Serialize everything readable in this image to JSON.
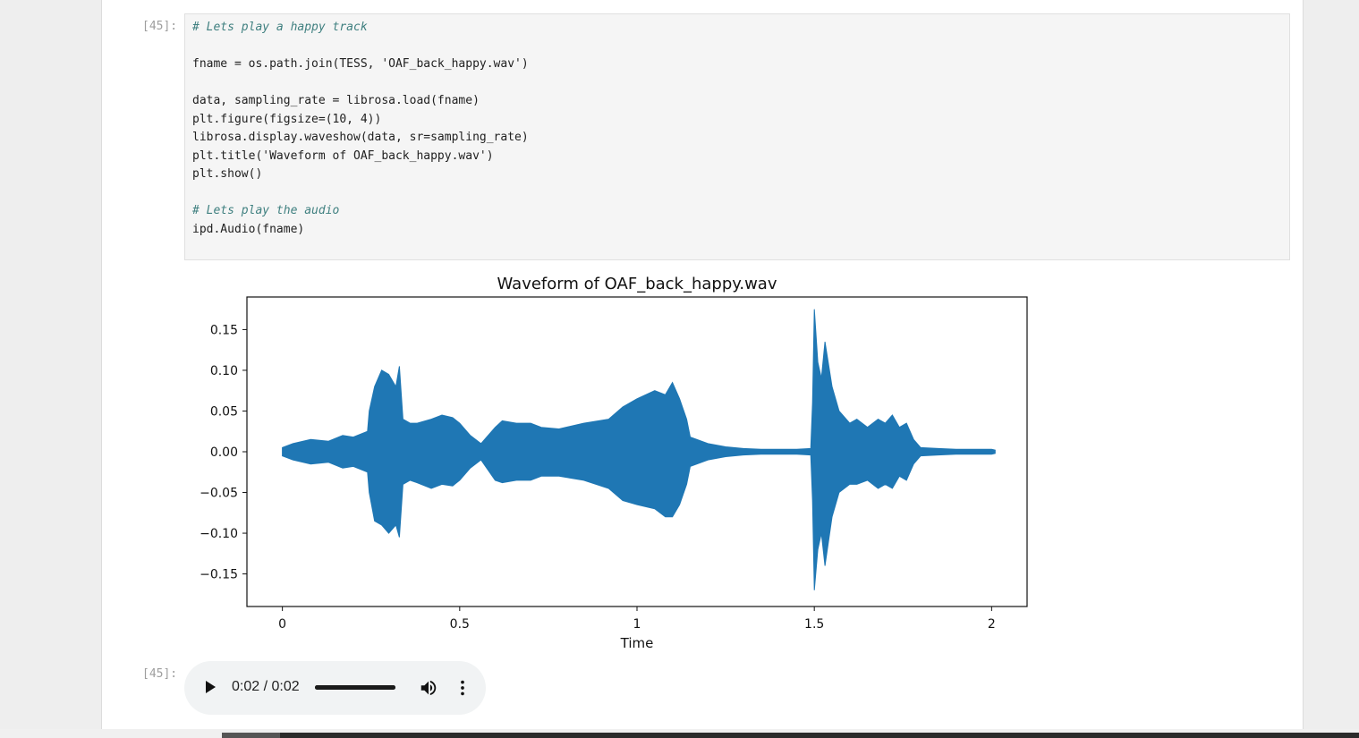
{
  "cells": {
    "input_prompt": "[45]:",
    "output_prompt": "[45]:",
    "code_lines": [
      "# Lets play a happy track",
      "",
      "fname = os.path.join(TESS, 'OAF_back_happy.wav')",
      "",
      "data, sampling_rate = librosa.load(fname)",
      "plt.figure(figsize=(10, 4))",
      "librosa.display.waveshow(data, sr=sampling_rate)",
      "plt.title('Waveform of OAF_back_happy.wav')",
      "plt.show()",
      "",
      "# Lets play the audio",
      "ipd.Audio(fname)"
    ]
  },
  "chart_data": {
    "type": "area",
    "title": "Waveform of OAF_back_happy.wav",
    "xlabel": "Time",
    "ylabel": "",
    "xlim": [
      -0.1,
      2.1
    ],
    "ylim": [
      -0.19,
      0.19
    ],
    "x_ticks": [
      0,
      0.5,
      1,
      1.5,
      2
    ],
    "x_tick_labels": [
      "0",
      "0.5",
      "1",
      "1.5",
      "2"
    ],
    "y_ticks": [
      0.15,
      0.1,
      0.05,
      0.0,
      -0.05,
      -0.1,
      -0.15
    ],
    "y_tick_labels": [
      "0.15",
      "0.10",
      "0.05",
      "0.00",
      "−0.05",
      "−0.10",
      "−0.15"
    ],
    "grid": false,
    "color": "#1f77b4",
    "envelope": {
      "x": [
        0,
        0.03,
        0.08,
        0.13,
        0.17,
        0.2,
        0.24,
        0.245,
        0.26,
        0.28,
        0.3,
        0.32,
        0.33,
        0.34,
        0.36,
        0.38,
        0.42,
        0.45,
        0.48,
        0.5,
        0.53,
        0.56,
        0.6,
        0.62,
        0.66,
        0.7,
        0.73,
        0.78,
        0.85,
        0.92,
        0.96,
        1.0,
        1.05,
        1.08,
        1.1,
        1.12,
        1.14,
        1.15,
        1.2,
        1.25,
        1.3,
        1.35,
        1.4,
        1.45,
        1.49,
        1.495,
        1.5,
        1.51,
        1.52,
        1.53,
        1.55,
        1.57,
        1.6,
        1.62,
        1.65,
        1.68,
        1.7,
        1.72,
        1.74,
        1.76,
        1.77,
        1.78,
        1.8,
        1.85,
        1.9,
        1.95,
        2.0,
        2.01
      ],
      "upper": [
        0.005,
        0.01,
        0.015,
        0.013,
        0.02,
        0.018,
        0.025,
        0.05,
        0.08,
        0.1,
        0.095,
        0.08,
        0.105,
        0.04,
        0.035,
        0.035,
        0.04,
        0.045,
        0.042,
        0.035,
        0.02,
        0.01,
        0.03,
        0.038,
        0.035,
        0.035,
        0.03,
        0.028,
        0.035,
        0.04,
        0.055,
        0.065,
        0.075,
        0.07,
        0.085,
        0.065,
        0.04,
        0.018,
        0.01,
        0.006,
        0.004,
        0.003,
        0.003,
        0.003,
        0.004,
        0.06,
        0.175,
        0.11,
        0.09,
        0.135,
        0.08,
        0.05,
        0.035,
        0.04,
        0.03,
        0.04,
        0.035,
        0.045,
        0.03,
        0.035,
        0.025,
        0.015,
        0.005,
        0.004,
        0.003,
        0.003,
        0.003,
        0.002
      ],
      "lower": [
        -0.005,
        -0.01,
        -0.015,
        -0.013,
        -0.02,
        -0.018,
        -0.025,
        -0.05,
        -0.085,
        -0.09,
        -0.1,
        -0.09,
        -0.105,
        -0.04,
        -0.035,
        -0.038,
        -0.045,
        -0.04,
        -0.042,
        -0.035,
        -0.02,
        -0.01,
        -0.035,
        -0.038,
        -0.035,
        -0.035,
        -0.03,
        -0.03,
        -0.035,
        -0.045,
        -0.06,
        -0.065,
        -0.07,
        -0.08,
        -0.08,
        -0.065,
        -0.04,
        -0.018,
        -0.01,
        -0.006,
        -0.004,
        -0.003,
        -0.003,
        -0.003,
        -0.004,
        -0.06,
        -0.17,
        -0.12,
        -0.1,
        -0.14,
        -0.08,
        -0.05,
        -0.04,
        -0.04,
        -0.035,
        -0.045,
        -0.04,
        -0.045,
        -0.03,
        -0.035,
        -0.025,
        -0.015,
        -0.005,
        -0.004,
        -0.003,
        -0.003,
        -0.003,
        -0.002
      ]
    }
  },
  "audio_player": {
    "time_display": "0:02 / 0:02",
    "progress": 1.0,
    "play_icon": "play-icon",
    "volume_icon": "volume-icon",
    "more_icon": "more-options-icon"
  }
}
